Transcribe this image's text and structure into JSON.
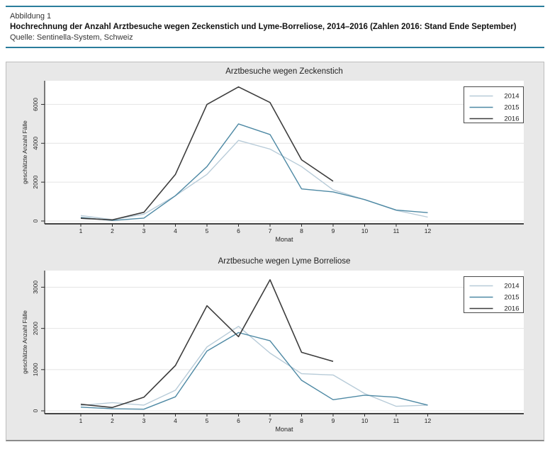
{
  "header": {
    "figure_label": "Abbildung 1",
    "title": "Hochrechnung der Anzahl Arztbesuche wegen Zeckenstich und Lyme-Borreliose, 2014–2016 (Zahlen 2016: Stand Ende September)",
    "source": "Quelle: Sentinella-System, Schweiz"
  },
  "colors": {
    "accent_rule": "#2a7d9c",
    "figure_bg": "#e8e8e8",
    "plot_bg": "#ffffff",
    "gridline": "#e4e4e4",
    "axis": "#2b2b2b",
    "legend_border": "#4a4a4a",
    "series_2014": "#b7cbd8",
    "series_2015": "#4e89a4",
    "series_2016": "#3d3d3d"
  },
  "chart_data": [
    {
      "type": "line",
      "name": "zeckenstich",
      "title": "Arztbesuche wegen Zeckenstich",
      "xlabel": "Monat",
      "ylabel": "geschätzte Anzahl Fälle",
      "x": [
        1,
        2,
        3,
        4,
        5,
        6,
        7,
        8,
        9,
        10,
        11,
        12
      ],
      "x_tick_labels": [
        "1",
        "2",
        "3",
        "4",
        "5",
        "6",
        "7",
        "8",
        "9",
        "10",
        "11",
        "12"
      ],
      "y_ticks": [
        0,
        2000,
        4000,
        6000
      ],
      "y_tick_labels": [
        "0",
        "2000",
        "4000",
        "6000"
      ],
      "ylim": [
        0,
        7000
      ],
      "grid": true,
      "legend_position": "top-right",
      "legend_entries": [
        "2014",
        "2015",
        "2016"
      ],
      "series": [
        {
          "name": "2014",
          "color_key": "series_2014",
          "values": [
            280,
            70,
            350,
            1300,
            2400,
            4150,
            3700,
            2800,
            1600,
            1100,
            550,
            200
          ]
        },
        {
          "name": "2015",
          "color_key": "series_2015",
          "values": [
            180,
            30,
            150,
            1300,
            2800,
            5000,
            4450,
            1650,
            1500,
            1100,
            560,
            430
          ]
        },
        {
          "name": "2016",
          "color_key": "series_2016",
          "values": [
            140,
            60,
            450,
            2400,
            6000,
            6900,
            6100,
            3150,
            2050,
            null,
            null,
            null
          ]
        }
      ]
    },
    {
      "type": "line",
      "name": "lyme",
      "title": "Arztbesuche wegen Lyme Borreliose",
      "xlabel": "Monat",
      "ylabel": "geschätzte Anzahl Fälle",
      "x": [
        1,
        2,
        3,
        4,
        5,
        6,
        7,
        8,
        9,
        10,
        11,
        12
      ],
      "x_tick_labels": [
        "1",
        "2",
        "3",
        "4",
        "5",
        "6",
        "7",
        "8",
        "9",
        "10",
        "11",
        "12"
      ],
      "y_ticks": [
        0,
        1000,
        2000,
        3000
      ],
      "y_tick_labels": [
        "0",
        "1000",
        "2000",
        "3000"
      ],
      "ylim": [
        0,
        3300
      ],
      "grid": true,
      "legend_position": "top-right",
      "legend_entries": [
        "2014",
        "2015",
        "2016"
      ],
      "series": [
        {
          "name": "2014",
          "color_key": "series_2014",
          "values": [
            130,
            200,
            140,
            500,
            1550,
            2050,
            1400,
            900,
            870,
            420,
            110,
            140
          ]
        },
        {
          "name": "2015",
          "color_key": "series_2015",
          "values": [
            90,
            50,
            40,
            340,
            1450,
            1900,
            1700,
            740,
            270,
            380,
            330,
            140
          ]
        },
        {
          "name": "2016",
          "color_key": "series_2016",
          "values": [
            160,
            80,
            330,
            1100,
            2550,
            1800,
            3180,
            1420,
            1200,
            null,
            null,
            null
          ]
        }
      ]
    }
  ]
}
